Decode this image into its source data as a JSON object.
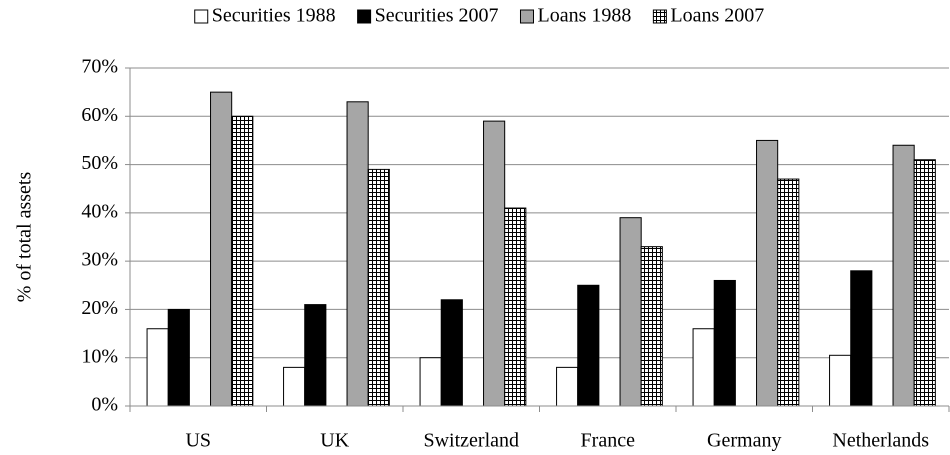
{
  "chart_data": {
    "type": "bar",
    "y_label": "% of total assets",
    "categories": [
      "US",
      "UK",
      "Switzerland",
      "France",
      "Germany",
      "Netherlands"
    ],
    "series": [
      {
        "name": "Securities 1988",
        "color": "#ffffff",
        "values": [
          16,
          8,
          10,
          8,
          16,
          10.5
        ]
      },
      {
        "name": "Securities 2007",
        "color": "#000000",
        "values": [
          20,
          21,
          22,
          25,
          26,
          28
        ]
      },
      {
        "name": "Loans 1988",
        "color": "#a6a6a6",
        "values": [
          65,
          63,
          59,
          39,
          55,
          54
        ]
      },
      {
        "name": "Loans 2007",
        "color": "#ffffff",
        "hatch": "grid",
        "values": [
          60,
          49,
          41,
          33,
          47,
          51
        ]
      }
    ],
    "ylim": [
      0,
      70
    ],
    "yticks": [
      {
        "value": 0,
        "label": "0%"
      },
      {
        "value": 10,
        "label": "10%"
      },
      {
        "value": 20,
        "label": "20%"
      },
      {
        "value": 30,
        "label": "30%"
      },
      {
        "value": 40,
        "label": "40%"
      },
      {
        "value": 50,
        "label": "50%"
      },
      {
        "value": 60,
        "label": "60%"
      },
      {
        "value": 70,
        "label": "70%"
      }
    ],
    "grid": true,
    "legend": "top"
  }
}
